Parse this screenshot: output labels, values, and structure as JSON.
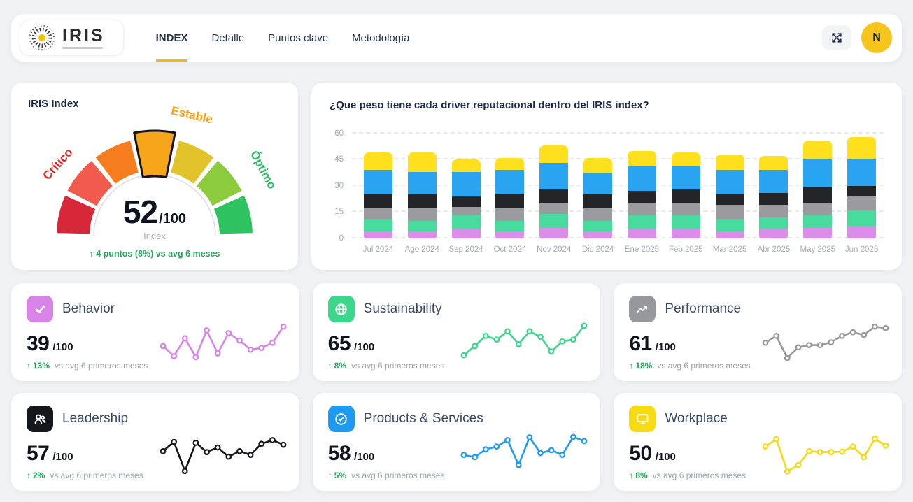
{
  "header": {
    "brand": "IRIS",
    "tabs": [
      {
        "label": "INDEX",
        "active": true
      },
      {
        "label": "Detalle",
        "active": false
      },
      {
        "label": "Puntos clave",
        "active": false
      },
      {
        "label": "Metodología",
        "active": false
      }
    ],
    "avatar_initial": "N"
  },
  "gauge": {
    "title": "IRIS Index",
    "score": "52",
    "score_suffix": "/100",
    "score_caption": "Index",
    "delta_arrow": "↑",
    "delta_text": "4 puntos (8%) vs avg 6 meses",
    "delta_color": "#1FA75A",
    "segment_colors": [
      "#D62839",
      "#F15B4E",
      "#F67D1E",
      "#F7A61B",
      "#E3C32B",
      "#8CCB3E",
      "#2FC261"
    ],
    "active_segment_index": 3,
    "zone_labels": [
      {
        "text": "Crítico",
        "color": "#E02424"
      },
      {
        "text": "Estable",
        "color": "#F7A219"
      },
      {
        "text": "Óptimo",
        "color": "#2EBE64"
      }
    ]
  },
  "chart_data": {
    "type": "bar",
    "stacked": true,
    "title": "¿Que peso tiene cada driver reputacional dentro del IRIS index?",
    "categories": [
      "Jul 2024",
      "Ago 2024",
      "Sep 2024",
      "Oct 2024",
      "Nov 2024",
      "Dic 2024",
      "Ene 2025",
      "Feb 2025",
      "Mar 2025",
      "Abr 2025",
      "May 2025",
      "Jun 2025"
    ],
    "series": [
      {
        "name": "Behavior",
        "color": "#DC8DEA",
        "values": [
          4,
          4,
          5,
          4,
          6,
          4,
          5,
          5,
          4,
          5,
          6,
          7
        ]
      },
      {
        "name": "Sustainability",
        "color": "#47DB9E",
        "values": [
          7,
          6,
          8,
          6,
          8,
          6,
          8,
          8,
          7,
          7,
          7,
          9
        ]
      },
      {
        "name": "Performance",
        "color": "#9B9B9F",
        "values": [
          6,
          7,
          5,
          7,
          6,
          7,
          7,
          7,
          8,
          7,
          7,
          8
        ]
      },
      {
        "name": "Leadership",
        "color": "#242529",
        "values": [
          8,
          8,
          6,
          8,
          8,
          8,
          7,
          8,
          6,
          7,
          9,
          6
        ]
      },
      {
        "name": "Products & Services",
        "color": "#29A4F1",
        "values": [
          14,
          13,
          14,
          14,
          15,
          12,
          14,
          13,
          14,
          13,
          16,
          15
        ]
      },
      {
        "name": "Workplace",
        "color": "#FFE01E",
        "values": [
          10,
          11,
          7,
          7,
          10,
          9,
          9,
          8,
          9,
          8,
          11,
          13
        ]
      }
    ],
    "totals": [
      49,
      49,
      45,
      46,
      53,
      46,
      50,
      49,
      48,
      47,
      56,
      58
    ],
    "yticks": [
      0,
      15,
      30,
      45,
      60
    ],
    "ylim": [
      0,
      63
    ],
    "grid": "dashed-horizontal",
    "legend_position": "none"
  },
  "drivers": [
    {
      "name": "Behavior",
      "icon": "check-icon",
      "color": "#D883E8",
      "score": "39",
      "score_suffix": "/100",
      "delta_arrow": "↑",
      "delta_pct": "13%",
      "delta_note": "vs avg 6 primeros meses",
      "spark": [
        38,
        16,
        55,
        14,
        72,
        22,
        66,
        50,
        30,
        34,
        45,
        80
      ]
    },
    {
      "name": "Sustainability",
      "icon": "globe-icon",
      "color": "#3CD68C",
      "score": "65",
      "score_suffix": "/100",
      "delta_arrow": "↑",
      "delta_pct": "8%",
      "delta_note": "vs avg 6 primeros meses",
      "spark": [
        18,
        38,
        60,
        52,
        70,
        42,
        70,
        58,
        26,
        48,
        52,
        82
      ]
    },
    {
      "name": "Performance",
      "icon": "trend-up-icon",
      "color": "#97989C",
      "score": "61",
      "score_suffix": "/100",
      "delta_arrow": "↑",
      "delta_pct": "18%",
      "delta_note": "vs avg 6 primeros meses",
      "spark": [
        45,
        60,
        12,
        35,
        40,
        40,
        46,
        60,
        68,
        62,
        80,
        77
      ]
    },
    {
      "name": "Leadership",
      "icon": "users-icon",
      "color": "#16171B",
      "score": "57",
      "score_suffix": "/100",
      "delta_arrow": "↑",
      "delta_pct": "2%",
      "delta_note": "vs avg 6 primeros meses",
      "spark": [
        48,
        68,
        5,
        66,
        46,
        56,
        36,
        48,
        40,
        64,
        72,
        62
      ]
    },
    {
      "name": "Products & Services",
      "icon": "badge-check-icon",
      "color": "#1E9BF0",
      "score": "58",
      "score_suffix": "/100",
      "delta_arrow": "↑",
      "delta_pct": "5%",
      "delta_note": "vs avg 6 primeros meses",
      "spark": [
        40,
        35,
        52,
        58,
        72,
        18,
        78,
        44,
        50,
        40,
        79,
        70
      ]
    },
    {
      "name": "Workplace",
      "icon": "monitor-icon",
      "color": "#F6DA12",
      "score": "50",
      "score_suffix": "/100",
      "delta_arrow": "↑",
      "delta_pct": "8%",
      "delta_note": "vs avg 6 primeros meses",
      "spark": [
        58,
        74,
        4,
        18,
        48,
        46,
        46,
        47,
        58,
        35,
        75,
        60
      ]
    }
  ],
  "colors": {
    "page_bg": "#F1F2F4",
    "card_bg": "#FFFFFF",
    "navy_text": "#1C2B49",
    "muted_text": "#A6ABB3",
    "green_delta": "#1FA75A",
    "accent_yellow": "#E9BB1F",
    "avatar_yellow": "#F6C51B"
  }
}
